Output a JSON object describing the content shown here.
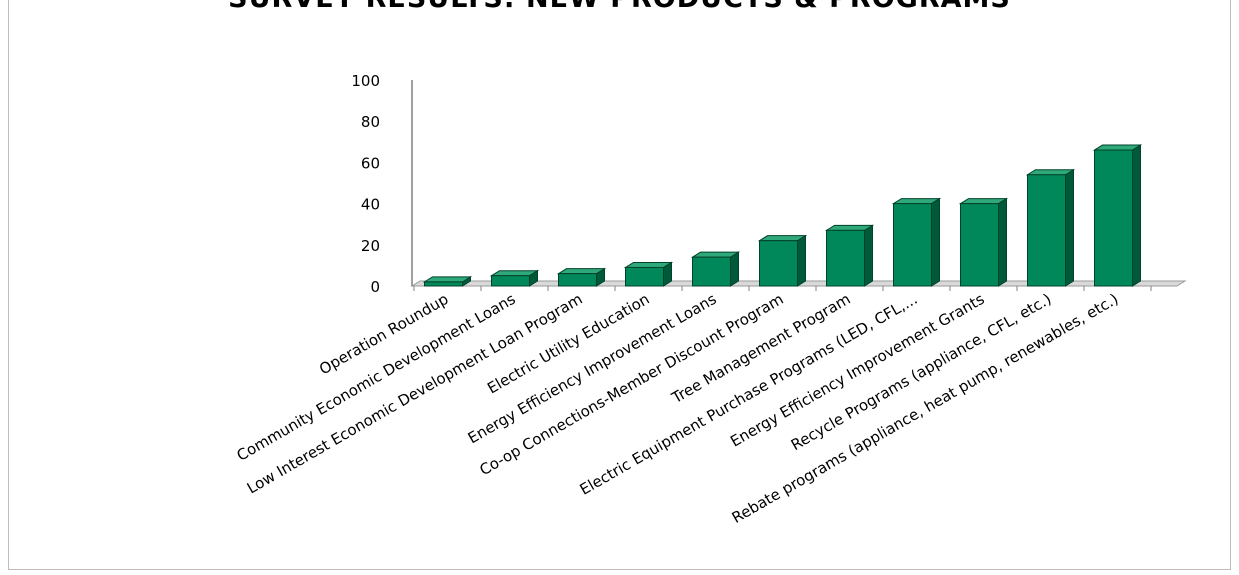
{
  "chart_data": {
    "type": "bar",
    "title": "SURVEY RESULTS: NEW PRODUCTS & PROGRAMS",
    "categories": [
      "Operation Roundup",
      "Community Economic Development Loans",
      "Low Interest Economic Development Loan Program",
      "Electric Utility Education",
      "Energy Efficiency Improvement Loans",
      "Co-op Connections-Member Discount Program",
      "Tree Management Program",
      "Electric Equipment Purchase Programs (LED, CFL,...",
      "Energy Efficiency Improvement Grants",
      "Recycle Programs (appliance, CFL, etc.)",
      "Rebate programs (appliance, heat pump, renewables, etc.)"
    ],
    "values": [
      2,
      5,
      6,
      9,
      14,
      22,
      27,
      40,
      40,
      54,
      66
    ],
    "yticks": [
      "0",
      "20",
      "40",
      "60",
      "80",
      "100"
    ],
    "ylim": [
      0,
      100
    ],
    "xlabel": "",
    "ylabel": "",
    "grid": false,
    "bar_color": "#00875a",
    "bar_side_color": "#005a3a",
    "bar_top_color": "#2fa97a"
  }
}
